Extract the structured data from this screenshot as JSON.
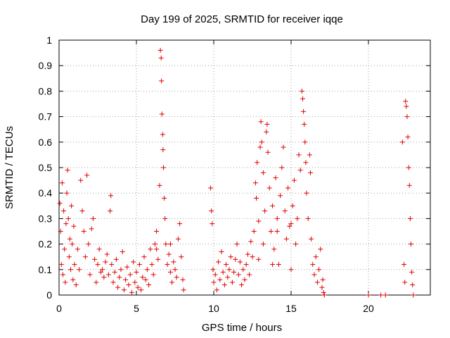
{
  "chart_data": {
    "type": "scatter",
    "title": "Day 199 of 2025, SRMTID for receiver iqqe",
    "xlabel": "GPS time / hours",
    "ylabel": "SRMTID / TECUs",
    "xlim": [
      0,
      24
    ],
    "ylim": [
      0,
      1
    ],
    "xticks": [
      0,
      5,
      10,
      15,
      20
    ],
    "yticks": [
      0,
      0.1,
      0.2,
      0.3,
      0.4,
      0.5,
      0.6,
      0.7,
      0.8,
      0.9,
      1
    ],
    "ytick_labels": [
      "0",
      "0.1",
      "0.2",
      "0.3",
      "0.4",
      "0.5",
      "0.6",
      "0.7",
      "0.8",
      "0.9",
      "1"
    ],
    "grid": true,
    "marker": "+",
    "color": "#e00000",
    "series": [
      {
        "name": "SRMTID",
        "points": [
          [
            0.05,
            0.36
          ],
          [
            0.1,
            0.25
          ],
          [
            0.15,
            0.12
          ],
          [
            0.2,
            0.44
          ],
          [
            0.25,
            0.08
          ],
          [
            0.3,
            0.33
          ],
          [
            0.35,
            0.18
          ],
          [
            0.4,
            0.05
          ],
          [
            0.45,
            0.28
          ],
          [
            0.5,
            0.4
          ],
          [
            0.55,
            0.49
          ],
          [
            0.6,
            0.3
          ],
          [
            0.65,
            0.15
          ],
          [
            0.7,
            0.22
          ],
          [
            0.75,
            0.1
          ],
          [
            0.8,
            0.35
          ],
          [
            0.85,
            0.2
          ],
          [
            0.9,
            0.06
          ],
          [
            0.95,
            0.27
          ],
          [
            1.0,
            0.12
          ],
          [
            1.1,
            0.04
          ],
          [
            1.2,
            0.18
          ],
          [
            1.3,
            0.1
          ],
          [
            1.4,
            0.45
          ],
          [
            1.5,
            0.33
          ],
          [
            1.6,
            0.25
          ],
          [
            1.7,
            0.15
          ],
          [
            1.8,
            0.47
          ],
          [
            1.9,
            0.2
          ],
          [
            2.0,
            0.08
          ],
          [
            2.1,
            0.26
          ],
          [
            2.2,
            0.3
          ],
          [
            2.3,
            0.14
          ],
          [
            2.4,
            0.05
          ],
          [
            2.5,
            0.12
          ],
          [
            2.6,
            0.18
          ],
          [
            2.7,
            0.09
          ],
          [
            2.8,
            0.1
          ],
          [
            2.9,
            0.07
          ],
          [
            3.0,
            0.13
          ],
          [
            3.1,
            0.16
          ],
          [
            3.2,
            0.08
          ],
          [
            3.3,
            0.33
          ],
          [
            3.35,
            0.39
          ],
          [
            3.4,
            0.12
          ],
          [
            3.5,
            0.05
          ],
          [
            3.6,
            0.09
          ],
          [
            3.7,
            0.14
          ],
          [
            3.8,
            0.03
          ],
          [
            3.9,
            0.07
          ],
          [
            4.0,
            0.1
          ],
          [
            4.1,
            0.17
          ],
          [
            4.2,
            0.02
          ],
          [
            4.3,
            0.06
          ],
          [
            4.4,
            0.11
          ],
          [
            4.5,
            0.04
          ],
          [
            4.6,
            0.08
          ],
          [
            4.7,
            0.01
          ],
          [
            4.8,
            0.13
          ],
          [
            4.9,
            0.05
          ],
          [
            5.0,
            0.09
          ],
          [
            5.1,
            0.03
          ],
          [
            5.2,
            0.12
          ],
          [
            5.3,
            0.02
          ],
          [
            5.4,
            0.07
          ],
          [
            5.5,
            0.15
          ],
          [
            5.6,
            0.06
          ],
          [
            5.7,
            0.1
          ],
          [
            5.8,
            0.04
          ],
          [
            5.9,
            0.18
          ],
          [
            6.0,
            0.12
          ],
          [
            6.1,
            0.08
          ],
          [
            6.2,
            0.2
          ],
          [
            6.3,
            0.25
          ],
          [
            6.4,
            0.14
          ],
          [
            6.5,
            0.43
          ],
          [
            6.55,
            0.96
          ],
          [
            6.6,
            0.93
          ],
          [
            6.62,
            0.84
          ],
          [
            6.65,
            0.71
          ],
          [
            6.7,
            0.63
          ],
          [
            6.72,
            0.57
          ],
          [
            6.75,
            0.5
          ],
          [
            6.8,
            0.38
          ],
          [
            6.85,
            0.3
          ],
          [
            6.9,
            0.2
          ],
          [
            7.0,
            0.12
          ],
          [
            7.1,
            0.16
          ],
          [
            7.2,
            0.09
          ],
          [
            7.3,
            0.05
          ],
          [
            7.4,
            0.13
          ],
          [
            7.5,
            0.1
          ],
          [
            7.6,
            0.07
          ],
          [
            7.7,
            0.22
          ],
          [
            7.8,
            0.28
          ],
          [
            7.9,
            0.15
          ],
          [
            8.0,
            0.06
          ],
          [
            8.05,
            0.02
          ],
          [
            6.3,
            0.18
          ],
          [
            7.2,
            0.2
          ],
          [
            9.8,
            0.42
          ],
          [
            9.85,
            0.33
          ],
          [
            9.9,
            0.28
          ],
          [
            9.95,
            0.1
          ],
          [
            10.0,
            0.05
          ],
          [
            10.1,
            0.08
          ],
          [
            10.2,
            0.02
          ],
          [
            10.3,
            0.13
          ],
          [
            10.4,
            0.06
          ],
          [
            10.5,
            0.17
          ],
          [
            10.6,
            0.09
          ],
          [
            10.7,
            0.04
          ],
          [
            10.8,
            0.12
          ],
          [
            10.9,
            0.07
          ],
          [
            11.0,
            0.1
          ],
          [
            11.1,
            0.15
          ],
          [
            11.2,
            0.05
          ],
          [
            11.3,
            0.09
          ],
          [
            11.4,
            0.14
          ],
          [
            11.5,
            0.2
          ],
          [
            11.6,
            0.08
          ],
          [
            11.7,
            0.13
          ],
          [
            11.8,
            0.04
          ],
          [
            11.9,
            0.1
          ],
          [
            12.0,
            0.06
          ],
          [
            12.1,
            0.12
          ],
          [
            12.2,
            0.16
          ],
          [
            12.3,
            0.08
          ],
          [
            12.4,
            0.21
          ],
          [
            12.5,
            0.15
          ],
          [
            12.6,
            0.25
          ],
          [
            12.7,
            0.44
          ],
          [
            12.75,
            0.38
          ],
          [
            12.8,
            0.52
          ],
          [
            12.9,
            0.29
          ],
          [
            13.0,
            0.58
          ],
          [
            13.05,
            0.68
          ],
          [
            13.1,
            0.6
          ],
          [
            13.2,
            0.48
          ],
          [
            13.3,
            0.33
          ],
          [
            13.4,
            0.64
          ],
          [
            13.45,
            0.67
          ],
          [
            13.5,
            0.56
          ],
          [
            13.6,
            0.42
          ],
          [
            13.7,
            0.25
          ],
          [
            13.8,
            0.35
          ],
          [
            13.9,
            0.18
          ],
          [
            14.0,
            0.46
          ],
          [
            14.1,
            0.3
          ],
          [
            14.2,
            0.12
          ],
          [
            14.3,
            0.39
          ],
          [
            14.4,
            0.5
          ],
          [
            14.5,
            0.58
          ],
          [
            14.6,
            0.33
          ],
          [
            14.7,
            0.22
          ],
          [
            14.8,
            0.42
          ],
          [
            14.9,
            0.27
          ],
          [
            15.0,
            0.1
          ],
          [
            15.1,
            0.35
          ],
          [
            15.2,
            0.45
          ],
          [
            15.3,
            0.2
          ],
          [
            15.4,
            0.3
          ],
          [
            15.5,
            0.55
          ],
          [
            15.6,
            0.49
          ],
          [
            15.7,
            0.8
          ],
          [
            15.75,
            0.77
          ],
          [
            15.8,
            0.72
          ],
          [
            15.85,
            0.67
          ],
          [
            15.9,
            0.6
          ],
          [
            15.95,
            0.52
          ],
          [
            16.0,
            0.4
          ],
          [
            16.1,
            0.3
          ],
          [
            16.2,
            0.55
          ],
          [
            16.25,
            0.48
          ],
          [
            16.3,
            0.22
          ],
          [
            16.4,
            0.12
          ],
          [
            16.5,
            0.08
          ],
          [
            16.6,
            0.15
          ],
          [
            16.7,
            0.05
          ],
          [
            16.8,
            0.1
          ],
          [
            16.9,
            0.18
          ],
          [
            17.0,
            0.03
          ],
          [
            17.05,
            0.06
          ],
          [
            17.1,
            0.01
          ],
          [
            17.15,
            0.0
          ],
          [
            13.2,
            0.2
          ],
          [
            14.1,
            0.25
          ],
          [
            15.0,
            0.28
          ],
          [
            12.9,
            0.14
          ],
          [
            13.8,
            0.12
          ],
          [
            20.0,
            0.0
          ],
          [
            20.8,
            0.0
          ],
          [
            21.1,
            0.0
          ],
          [
            22.2,
            0.6
          ],
          [
            22.3,
            0.12
          ],
          [
            22.35,
            0.05
          ],
          [
            22.4,
            0.76
          ],
          [
            22.45,
            0.74
          ],
          [
            22.5,
            0.7
          ],
          [
            22.55,
            0.62
          ],
          [
            22.6,
            0.5
          ],
          [
            22.65,
            0.43
          ],
          [
            22.7,
            0.3
          ],
          [
            22.75,
            0.2
          ],
          [
            22.8,
            0.09
          ],
          [
            22.85,
            0.04
          ],
          [
            22.9,
            0.0
          ]
        ]
      }
    ]
  }
}
